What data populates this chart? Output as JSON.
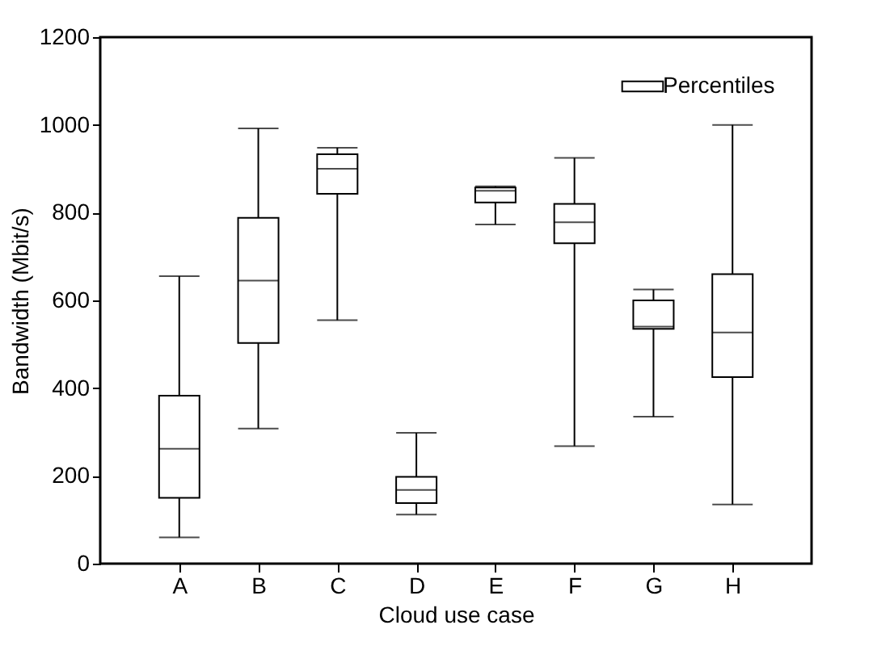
{
  "chart_data": {
    "type": "box",
    "xlabel": "Cloud use case",
    "ylabel": "Bandwidth (Mbit/s)",
    "categories": [
      "A",
      "B",
      "C",
      "D",
      "E",
      "F",
      "G",
      "H"
    ],
    "ylim": [
      0,
      1200
    ],
    "yticks": [
      0,
      200,
      400,
      600,
      800,
      1000,
      1200
    ],
    "legend": "top right",
    "series": [
      {
        "name": "Percentiles",
        "color": "#000000",
        "boxes": [
          {
            "low": 60,
            "q1": 150,
            "median": 262,
            "q3": 383,
            "high": 655
          },
          {
            "low": 308,
            "q1": 503,
            "median": 645,
            "q3": 788,
            "high": 992
          },
          {
            "low": 555,
            "q1": 843,
            "median": 900,
            "q3": 933,
            "high": 948
          },
          {
            "low": 112,
            "q1": 138,
            "median": 168,
            "q3": 198,
            "high": 298
          },
          {
            "low": 773,
            "q1": 823,
            "median": 850,
            "q3": 857,
            "high": 860
          },
          {
            "low": 268,
            "q1": 730,
            "median": 778,
            "q3": 820,
            "high": 925
          },
          {
            "low": 335,
            "q1": 535,
            "median": 540,
            "q3": 600,
            "high": 625
          },
          {
            "low": 135,
            "q1": 425,
            "median": 527,
            "q3": 660,
            "high": 1000
          }
        ]
      }
    ]
  }
}
